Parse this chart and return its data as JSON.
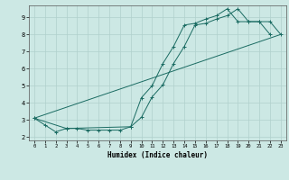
{
  "xlabel": "Humidex (Indice chaleur)",
  "bg_color": "#cce8e4",
  "grid_color": "#b0d0cc",
  "line_color": "#1a6b62",
  "xlim": [
    -0.5,
    23.5
  ],
  "ylim": [
    1.8,
    9.7
  ],
  "yticks": [
    2,
    3,
    4,
    5,
    6,
    7,
    8,
    9
  ],
  "xticks": [
    0,
    1,
    2,
    3,
    4,
    5,
    6,
    7,
    8,
    9,
    10,
    11,
    12,
    13,
    14,
    15,
    16,
    17,
    18,
    19,
    20,
    21,
    22,
    23
  ],
  "line1_x": [
    0,
    1,
    2,
    3,
    4,
    5,
    6,
    7,
    8,
    9,
    10,
    11,
    12,
    13,
    14,
    15,
    16,
    17,
    18,
    19,
    20,
    21,
    22
  ],
  "line1_y": [
    3.1,
    2.7,
    2.3,
    2.5,
    2.5,
    2.4,
    2.4,
    2.4,
    2.4,
    2.6,
    4.3,
    5.0,
    6.3,
    7.3,
    8.55,
    8.65,
    8.9,
    9.1,
    9.5,
    8.75,
    8.75,
    8.75,
    8.0
  ],
  "line2_x": [
    0,
    3,
    9,
    10,
    11,
    12,
    13,
    14,
    15,
    16,
    17,
    18,
    19,
    20,
    21,
    22,
    23
  ],
  "line2_y": [
    3.1,
    2.5,
    2.6,
    3.15,
    4.35,
    5.05,
    6.3,
    7.3,
    8.55,
    8.65,
    8.9,
    9.1,
    9.5,
    8.75,
    8.75,
    8.75,
    8.0
  ],
  "line3_x": [
    0,
    23
  ],
  "line3_y": [
    3.1,
    8.0
  ]
}
